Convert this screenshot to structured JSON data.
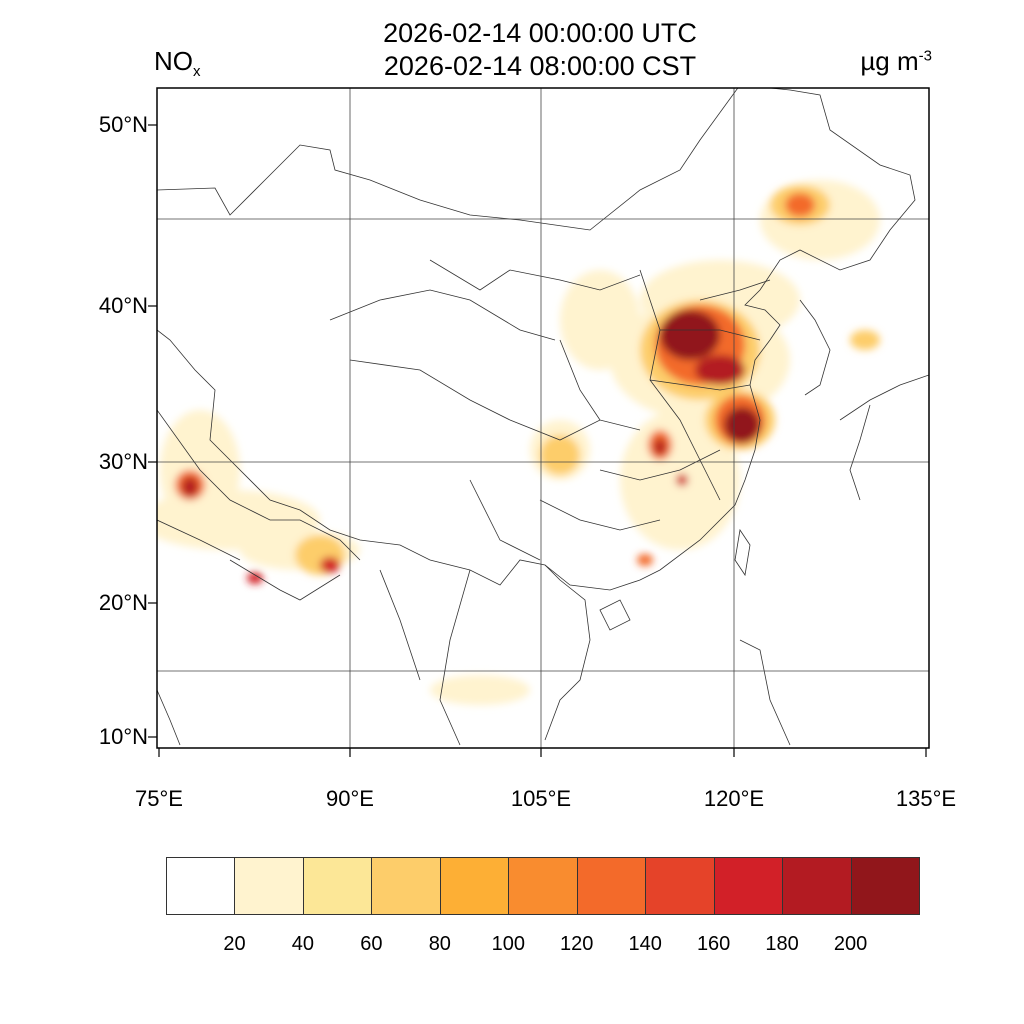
{
  "header": {
    "variable": "NO",
    "variable_sub": "x",
    "title_utc": "2026-02-14 00:00:00 UTC",
    "title_cst": "2026-02-14 08:00:00 CST",
    "units": "µg m",
    "units_sup": "-3"
  },
  "map": {
    "projection_extent": {
      "lon": [
        75,
        135
      ],
      "lat": [
        10,
        52
      ]
    },
    "lat_labels": [
      "50°N",
      "40°N",
      "30°N",
      "20°N",
      "10°N"
    ],
    "lon_labels": [
      "75°E",
      "90°E",
      "105°E",
      "120°E",
      "135°E"
    ],
    "gridlines": true
  },
  "colorbar": {
    "labels": [
      "20",
      "40",
      "60",
      "80",
      "100",
      "120",
      "140",
      "160",
      "180",
      "200"
    ],
    "colors": [
      "#ffffff",
      "#fff3cf",
      "#fce797",
      "#fdcd6a",
      "#fdaf35",
      "#f98c2f",
      "#f36a2a",
      "#e54329",
      "#d22028",
      "#b31b22",
      "#91161b"
    ]
  }
}
